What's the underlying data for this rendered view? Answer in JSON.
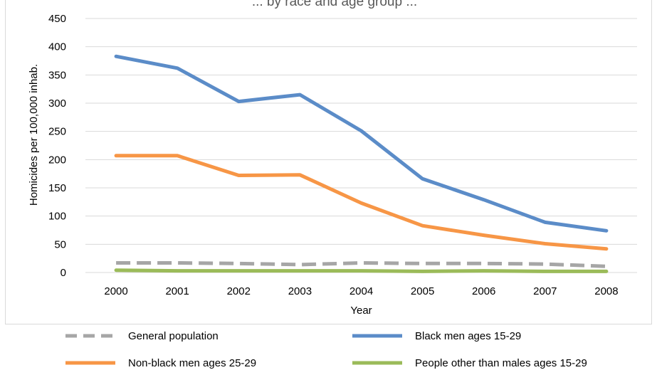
{
  "chart_data": {
    "type": "line",
    "title": "... by race and age group ...",
    "xlabel": "Year",
    "ylabel": "Homicides per 100,000 inhab.",
    "ylim": [
      0,
      450
    ],
    "yticks": [
      "0",
      "50",
      "100",
      "150",
      "200",
      "250",
      "300",
      "350",
      "400",
      "450"
    ],
    "categories": [
      "2000",
      "2001",
      "2002",
      "2003",
      "2004",
      "2005",
      "2006",
      "2007",
      "2008"
    ],
    "grid": true,
    "legend_position": "bottom",
    "series": [
      {
        "name": "Black men ages 15-29",
        "color": "#5b8cc8",
        "dash": "solid",
        "values": [
          383,
          362,
          303,
          315,
          251,
          166,
          129,
          89,
          74
        ]
      },
      {
        "name": "Non-black men ages 25-29",
        "color": "#f79646",
        "dash": "solid",
        "values": [
          207,
          207,
          172,
          173,
          123,
          83,
          66,
          51,
          42
        ]
      },
      {
        "name": "General population",
        "color": "#a6a6a6",
        "dash": "dashed",
        "values": [
          17,
          17,
          16,
          14,
          17,
          16,
          16,
          15,
          11
        ]
      },
      {
        "name": "People other than males ages 15-29",
        "color": "#9bbb59",
        "dash": "solid",
        "values": [
          4,
          3,
          3,
          3,
          3,
          2,
          3,
          2,
          2
        ]
      }
    ],
    "legend_order": [
      "General population",
      "Black men ages 15-29",
      "Non-black men ages 25-29",
      "People other than males ages 15-29"
    ]
  }
}
